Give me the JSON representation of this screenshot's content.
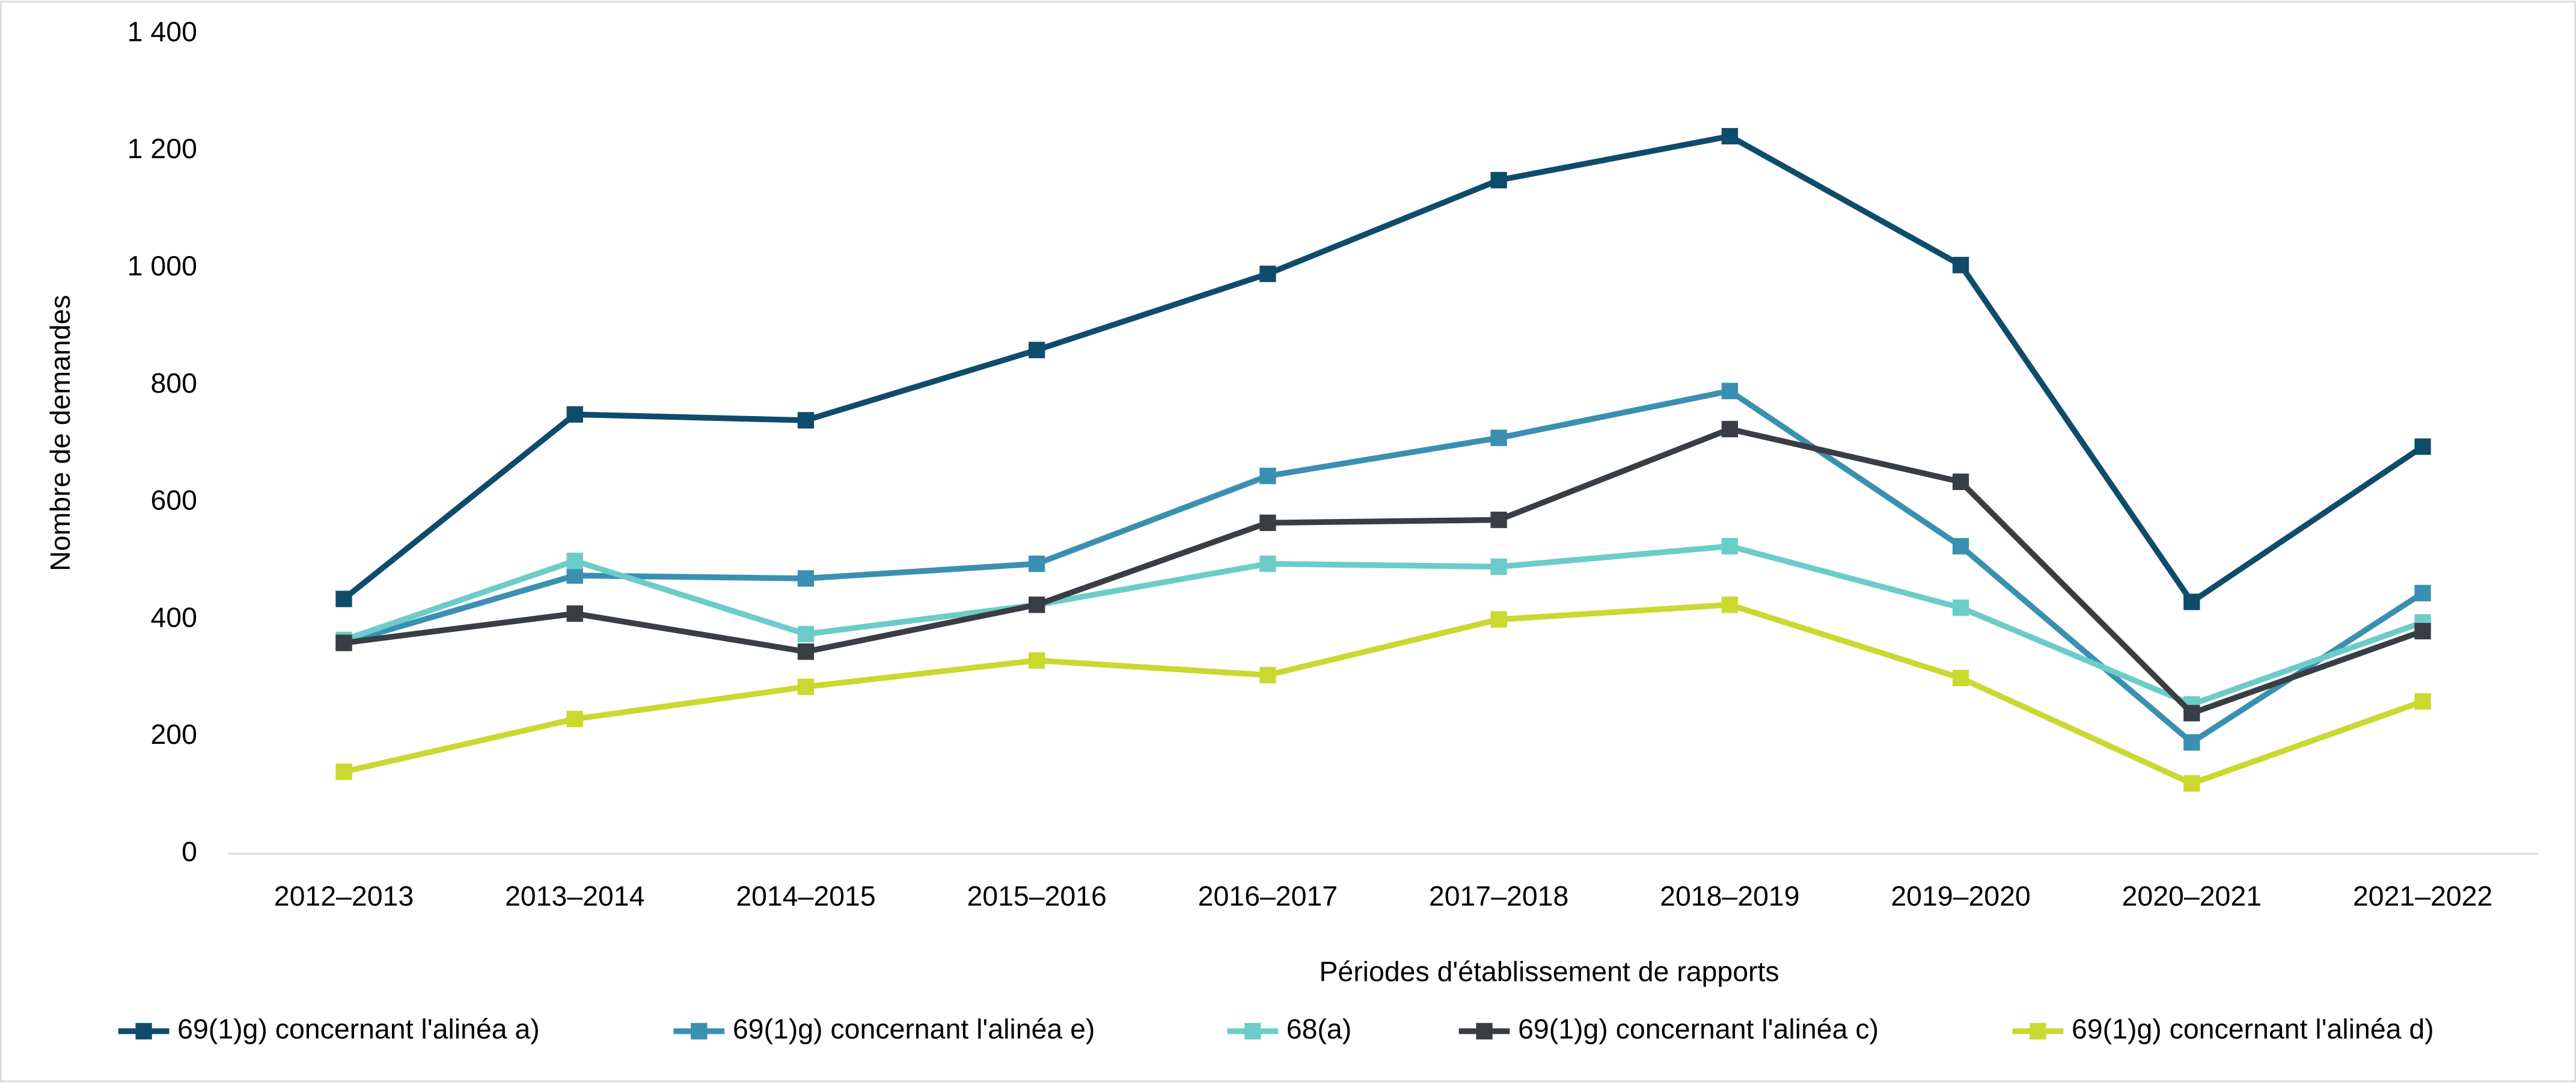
{
  "chart_data": {
    "type": "line",
    "x_label": "Périodes d'établissement de rapports",
    "y_label": "Nombre de demandes",
    "categories": [
      "2012–2013",
      "2013–2014",
      "2014–2015",
      "2015–2016",
      "2016–2017",
      "2017–2018",
      "2018–2019",
      "2019–2020",
      "2020–2021",
      "2021–2022"
    ],
    "series": [
      {
        "name": "69(1)g) concernant l'alinéa a)",
        "color": "#0f4c6b",
        "values": [
          435,
          750,
          740,
          860,
          990,
          1150,
          1225,
          1005,
          430,
          695
        ]
      },
      {
        "name": "69(1)g) concernant l'alinéa e)",
        "color": "#3a90b0",
        "values": [
          360,
          475,
          470,
          495,
          645,
          710,
          790,
          525,
          190,
          445
        ]
      },
      {
        "name": "68(a)",
        "color": "#6cccc8",
        "values": [
          365,
          500,
          375,
          425,
          495,
          490,
          525,
          420,
          255,
          395
        ]
      },
      {
        "name": "69(1)g) concernant l'alinéa c)",
        "color": "#393e44",
        "values": [
          360,
          410,
          345,
          425,
          565,
          570,
          725,
          635,
          240,
          380
        ]
      },
      {
        "name": "69(1)g) concernant l'alinéa d)",
        "color": "#c9d930",
        "values": [
          140,
          230,
          285,
          330,
          305,
          400,
          425,
          300,
          120,
          260
        ]
      }
    ],
    "ylim": [
      0,
      1400
    ],
    "yticks": [
      0,
      200,
      400,
      600,
      800,
      {
        "value": 1000,
        "label": "1 000"
      },
      {
        "value": 1200,
        "label": "1 200"
      },
      {
        "value": 1400,
        "label": "1 400"
      }
    ],
    "grid": false,
    "legend": "bottom"
  }
}
